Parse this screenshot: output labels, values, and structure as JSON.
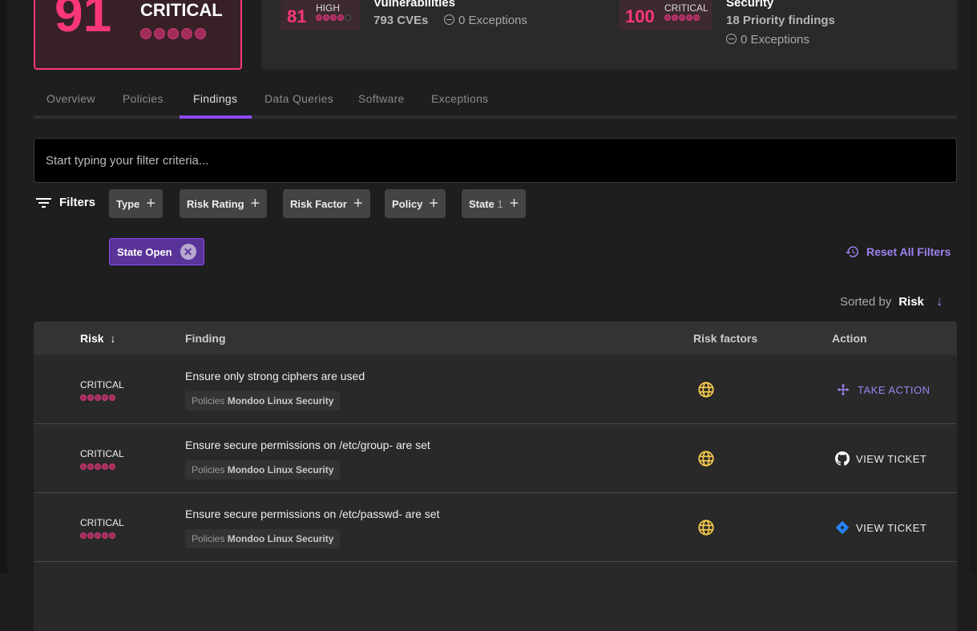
{
  "overall": {
    "score": "91",
    "rating": "CRITICAL",
    "dots_filled": 5
  },
  "vulnerabilities": {
    "score": "81",
    "rating": "HIGH",
    "dots_filled": 4,
    "title": "Vulnerabilities",
    "count": "793 CVEs",
    "exceptions": "0 Exceptions"
  },
  "security": {
    "score": "100",
    "rating": "CRITICAL",
    "dots_filled": 5,
    "title": "Security",
    "count": "18 Priority findings",
    "exceptions": "0 Exceptions"
  },
  "tabs": [
    {
      "label": "Overview"
    },
    {
      "label": "Policies"
    },
    {
      "label": "Findings",
      "active": true
    },
    {
      "label": "Data Queries"
    },
    {
      "label": "Software"
    },
    {
      "label": "Exceptions"
    }
  ],
  "filter": {
    "placeholder": "Start typing your filter criteria...",
    "label": "Filters",
    "chips": [
      {
        "label": "Type",
        "count": ""
      },
      {
        "label": "Risk Rating",
        "count": ""
      },
      {
        "label": "Risk Factor",
        "count": ""
      },
      {
        "label": "Policy",
        "count": ""
      },
      {
        "label": "State",
        "count": "1"
      }
    ],
    "active": "State Open",
    "reset": "Reset All Filters"
  },
  "sort": {
    "prefix": "Sorted by",
    "field": "Risk"
  },
  "table": {
    "headers": {
      "risk": "Risk",
      "finding": "Finding",
      "factors": "Risk factors",
      "action": "Action"
    },
    "rows": [
      {
        "risk": "CRITICAL",
        "finding": "Ensure only strong ciphers are used",
        "policy_prefix": "Policies",
        "policy": "Mondoo Linux Security",
        "action": "TAKE ACTION",
        "action_icon": "take-action-icon"
      },
      {
        "risk": "CRITICAL",
        "finding": "Ensure secure permissions on /etc/group- are set",
        "policy_prefix": "Policies",
        "policy": "Mondoo Linux Security",
        "action": "VIEW TICKET",
        "action_icon": "github-icon"
      },
      {
        "risk": "CRITICAL",
        "finding": "Ensure secure permissions on /etc/passwd- are set",
        "policy_prefix": "Policies",
        "policy": "Mondoo Linux Security",
        "action": "VIEW TICKET",
        "action_icon": "jira-icon"
      }
    ]
  },
  "colors": {
    "critical": "#fc3779",
    "accent": "#8b4cf7",
    "link": "#9d82f0",
    "globe": "#f5c84c",
    "jira": "#2684ff"
  }
}
